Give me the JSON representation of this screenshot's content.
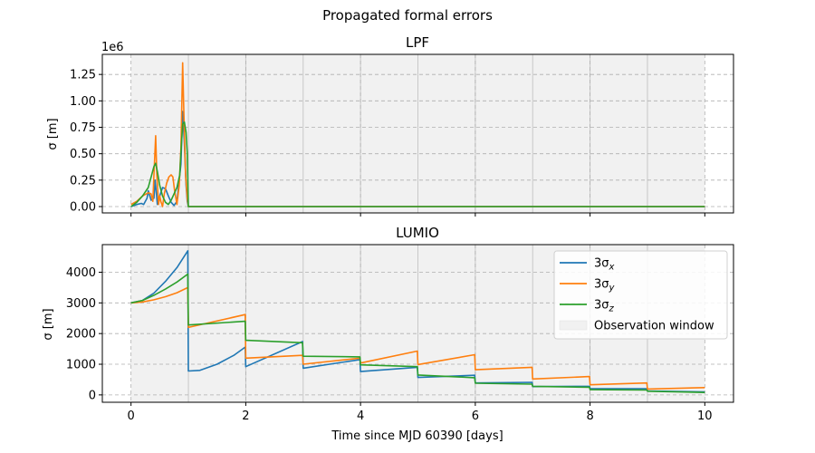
{
  "chart_data": {
    "type": "line",
    "title": "Propagated formal errors",
    "xlabel": "Time since MJD 60390 [days]",
    "xlim": [
      -0.5,
      10.5
    ],
    "xticks": [
      0,
      2,
      4,
      6,
      8,
      10
    ],
    "grid": true,
    "colors": {
      "x": "#1f77b4",
      "y": "#ff7f0e",
      "z": "#2ca02c",
      "window": "#f1f1f1"
    },
    "observation_windows": [
      [
        0,
        1
      ],
      [
        1,
        2
      ],
      [
        2,
        3
      ],
      [
        3,
        4
      ],
      [
        4,
        5
      ],
      [
        5,
        6
      ],
      [
        6,
        7
      ],
      [
        7,
        8
      ],
      [
        8,
        9
      ],
      [
        9,
        10
      ]
    ],
    "legend": {
      "placement": "upper right",
      "entries": [
        {
          "key": "x",
          "label": "3σ",
          "sub": "x"
        },
        {
          "key": "y",
          "label": "3σ",
          "sub": "y"
        },
        {
          "key": "z",
          "label": "3σ",
          "sub": "z"
        },
        {
          "key": "window",
          "label": "Observation window"
        }
      ]
    },
    "panels": [
      {
        "title": "LPF",
        "ylabel": "σ [m]",
        "offset_text": "1e6",
        "ylim": [
          -0.06,
          1.44
        ],
        "yticks": [
          0,
          0.25,
          0.5,
          0.75,
          1.0,
          1.25
        ],
        "ytick_labels": [
          "0.00",
          "0.25",
          "0.50",
          "0.75",
          "1.00",
          "1.25"
        ],
        "show_xtick_labels": false,
        "series": [
          {
            "key": "x",
            "x": [
              0,
              0.1,
              0.18,
              0.22,
              0.28,
              0.3,
              0.35,
              0.4,
              0.42,
              0.46,
              0.5,
              0.55,
              0.6,
              0.65,
              0.7,
              0.75,
              0.8,
              0.83,
              0.87,
              0.9,
              0.93,
              0.96,
              0.98,
              1.0,
              10
            ],
            "y": [
              0.0,
              0.02,
              0.03,
              0.02,
              0.08,
              0.15,
              0.06,
              0.08,
              0.25,
              0.02,
              0.1,
              0.18,
              0.17,
              0.1,
              0.04,
              0.01,
              0.05,
              0.2,
              0.4,
              0.9,
              0.6,
              0.2,
              0.05,
              0.0,
              0.0
            ]
          },
          {
            "key": "y",
            "x": [
              0,
              0.1,
              0.2,
              0.3,
              0.35,
              0.38,
              0.4,
              0.43,
              0.45,
              0.48,
              0.5,
              0.52,
              0.55,
              0.58,
              0.62,
              0.66,
              0.7,
              0.73,
              0.76,
              0.8,
              0.84,
              0.87,
              0.9,
              0.92,
              0.95,
              0.98,
              1.0,
              10
            ],
            "y": [
              0.02,
              0.05,
              0.1,
              0.13,
              0.12,
              0.05,
              0.3,
              0.67,
              0.3,
              0.02,
              0.1,
              0.05,
              0.0,
              0.12,
              0.22,
              0.28,
              0.3,
              0.28,
              0.15,
              0.02,
              0.2,
              0.55,
              1.36,
              0.9,
              0.3,
              0.08,
              0.0,
              0.0
            ]
          },
          {
            "key": "z",
            "x": [
              0,
              0.1,
              0.2,
              0.3,
              0.35,
              0.4,
              0.43,
              0.46,
              0.5,
              0.55,
              0.6,
              0.65,
              0.7,
              0.75,
              0.8,
              0.85,
              0.88,
              0.9,
              0.93,
              0.96,
              0.98,
              1.0,
              10
            ],
            "y": [
              0.0,
              0.04,
              0.1,
              0.18,
              0.28,
              0.38,
              0.41,
              0.33,
              0.2,
              0.1,
              0.04,
              0.02,
              0.06,
              0.12,
              0.18,
              0.3,
              0.6,
              0.78,
              0.8,
              0.7,
              0.5,
              0.0,
              0.0
            ]
          }
        ]
      },
      {
        "title": "LUMIO",
        "ylabel": "σ [m]",
        "ylim": [
          -240,
          4900
        ],
        "yticks": [
          0,
          1000,
          2000,
          3000,
          4000
        ],
        "ytick_labels": [
          "0",
          "1000",
          "2000",
          "3000",
          "4000"
        ],
        "show_xtick_labels": true,
        "xtick_labels": [
          "0",
          "2",
          "4",
          "6",
          "8",
          "10"
        ],
        "series": [
          {
            "key": "x",
            "x": [
              0,
              0.2,
              0.4,
              0.6,
              0.8,
              0.99,
              1.0,
              1.2,
              1.5,
              1.8,
              1.99,
              2.0,
              2.99,
              3.0,
              3.99,
              4.0,
              4.99,
              5.0,
              5.99,
              6.0,
              6.99,
              7.0,
              7.99,
              8.0,
              8.99,
              9.0,
              10
            ],
            "y": [
              3000,
              3080,
              3320,
              3700,
              4150,
              4700,
              780,
              800,
              1000,
              1300,
              1560,
              920,
              1740,
              870,
              1150,
              760,
              900,
              570,
              640,
              390,
              410,
              270,
              280,
              200,
              200,
              130,
              100
            ]
          },
          {
            "key": "y",
            "x": [
              0,
              0.2,
              0.4,
              0.6,
              0.8,
              0.99,
              1.0,
              1.99,
              2.0,
              2.99,
              3.0,
              3.99,
              4.0,
              4.99,
              5.0,
              5.99,
              6.0,
              6.99,
              7.0,
              7.99,
              8.0,
              8.99,
              9.0,
              10
            ],
            "y": [
              3000,
              3030,
              3100,
              3200,
              3330,
              3500,
              2200,
              2620,
              1200,
              1290,
              1000,
              1200,
              1040,
              1430,
              990,
              1310,
              820,
              900,
              520,
              600,
              330,
              390,
              190,
              240
            ]
          },
          {
            "key": "z",
            "x": [
              0,
              0.2,
              0.4,
              0.6,
              0.8,
              0.99,
              1.0,
              1.99,
              2.0,
              2.99,
              3.0,
              3.99,
              4.0,
              4.99,
              5.0,
              5.99,
              6.0,
              6.99,
              7.0,
              7.99,
              8.0,
              8.99,
              9.0,
              10
            ],
            "y": [
              3000,
              3080,
              3250,
              3450,
              3680,
              3940,
              2280,
              2400,
              1780,
              1700,
              1260,
              1240,
              980,
              920,
              650,
              560,
              380,
              350,
              280,
              250,
              170,
              160,
              120,
              80
            ]
          }
        ]
      }
    ]
  }
}
